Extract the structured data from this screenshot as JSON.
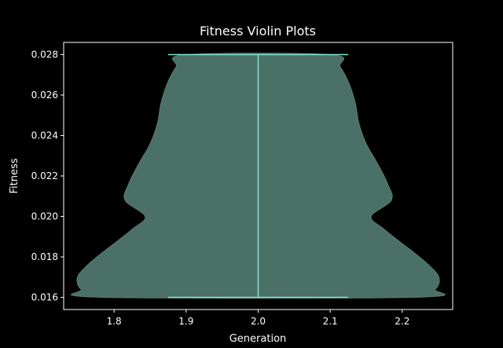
{
  "chart_data": {
    "type": "violin",
    "title": "Fitness Violin Plots",
    "xlabel": "Generation",
    "ylabel": "Fitness",
    "xlim": [
      1.73,
      2.27
    ],
    "ylim": [
      0.0154,
      0.0286
    ],
    "x_ticks": [
      1.8,
      1.9,
      2.0,
      2.1,
      2.2
    ],
    "x_tick_labels": [
      "1.8",
      "1.9",
      "2.0",
      "2.1",
      "2.2"
    ],
    "y_ticks": [
      0.016,
      0.018,
      0.02,
      0.022,
      0.024,
      0.026,
      0.028
    ],
    "y_tick_labels": [
      "0.016",
      "0.018",
      "0.020",
      "0.022",
      "0.024",
      "0.026",
      "0.028"
    ],
    "grid": false,
    "background": "#000000",
    "colors": {
      "violin_fill": "#4a7068",
      "violin_edge": "#8fb8ac",
      "lines": "#7fe3cf",
      "axes": "#ffffff"
    },
    "violins": [
      {
        "position": 2.0,
        "min": 0.016,
        "max": 0.028,
        "whisker_halfwidth": 0.125,
        "density_profile": [
          {
            "y": 0.016,
            "half_width": 0.218
          },
          {
            "y": 0.0164,
            "half_width": 0.246
          },
          {
            "y": 0.017,
            "half_width": 0.251
          },
          {
            "y": 0.0176,
            "half_width": 0.237
          },
          {
            "y": 0.0182,
            "half_width": 0.217
          },
          {
            "y": 0.0188,
            "half_width": 0.195
          },
          {
            "y": 0.0194,
            "half_width": 0.174
          },
          {
            "y": 0.02,
            "half_width": 0.157
          },
          {
            "y": 0.0208,
            "half_width": 0.185
          },
          {
            "y": 0.0216,
            "half_width": 0.18
          },
          {
            "y": 0.0226,
            "half_width": 0.166
          },
          {
            "y": 0.0236,
            "half_width": 0.15
          },
          {
            "y": 0.0246,
            "half_width": 0.14
          },
          {
            "y": 0.0256,
            "half_width": 0.135
          },
          {
            "y": 0.0266,
            "half_width": 0.126
          },
          {
            "y": 0.0274,
            "half_width": 0.114
          },
          {
            "y": 0.028,
            "half_width": 0.1
          }
        ]
      }
    ]
  }
}
